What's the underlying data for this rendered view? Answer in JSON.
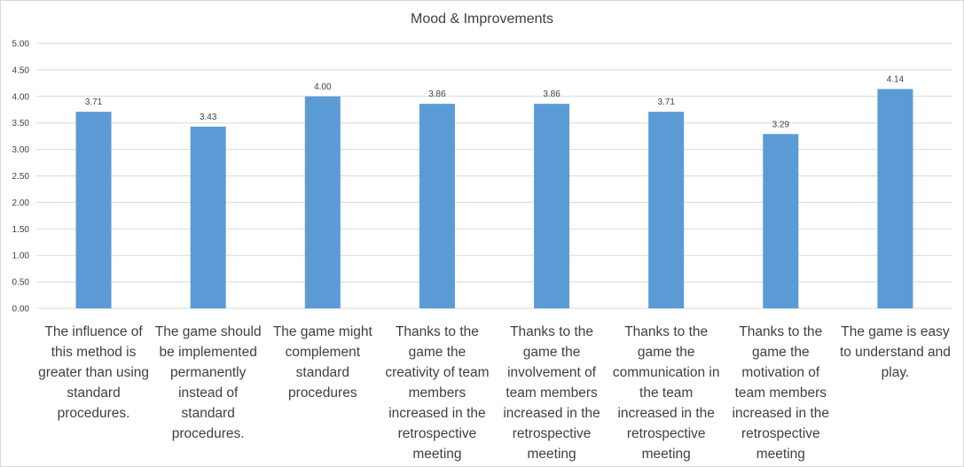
{
  "chart_data": {
    "type": "bar",
    "title": "Mood & Improvements",
    "categories": [
      "The influence of this method is greater than using standard procedures.",
      "The game should be implemented permanently instead of standard procedures.",
      "The game might complement standard procedures",
      "Thanks to the game the creativity of team members increased in the retrospective meeting",
      "Thanks to the game the involvement of team members increased in the retrospective meeting",
      "Thanks to the game the communication in the team increased in the retrospective meeting",
      "Thanks to the game the motivation of team members increased in the retrospective meeting",
      "The game is easy to understand and play."
    ],
    "values": [
      3.71,
      3.43,
      4.0,
      3.86,
      3.86,
      3.71,
      3.29,
      4.14
    ],
    "value_labels": [
      "3.71",
      "3.43",
      "4.00",
      "3.86",
      "3.86",
      "3.71",
      "3.29",
      "4.14"
    ],
    "yticks": [
      "0.00",
      "0.50",
      "1.00",
      "1.50",
      "2.00",
      "2.50",
      "3.00",
      "3.50",
      "4.00",
      "4.50",
      "5.00"
    ],
    "ylim": [
      0,
      5
    ],
    "grid": true,
    "bar_color": "#5b9bd5",
    "grid_color": "#d9d9d9",
    "xlabel": "",
    "ylabel": ""
  }
}
